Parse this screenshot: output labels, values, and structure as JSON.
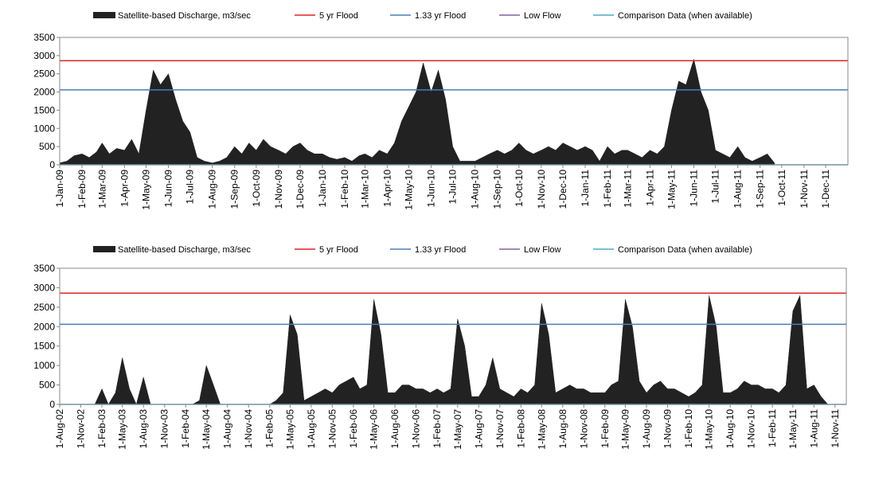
{
  "chart_data": [
    {
      "type": "area",
      "xlim": [
        "2009-01-01",
        "2012-01-01"
      ],
      "ylim": [
        0,
        3500
      ],
      "yticks": [
        0,
        500,
        1000,
        1500,
        2000,
        2500,
        3000,
        3500
      ],
      "xticks": [
        {
          "value": "2009-01-01",
          "label": "1-Jan-09"
        },
        {
          "value": "2009-02-01",
          "label": "1-Feb-09"
        },
        {
          "value": "2009-03-01",
          "label": "1-Mar-09"
        },
        {
          "value": "2009-04-01",
          "label": "1-Apr-09"
        },
        {
          "value": "2009-05-01",
          "label": "1-May-09"
        },
        {
          "value": "2009-06-01",
          "label": "1-Jun-09"
        },
        {
          "value": "2009-07-01",
          "label": "1-Jul-09"
        },
        {
          "value": "2009-08-01",
          "label": "1-Aug-09"
        },
        {
          "value": "2009-09-01",
          "label": "1-Sep-09"
        },
        {
          "value": "2009-10-01",
          "label": "1-Oct-09"
        },
        {
          "value": "2009-11-01",
          "label": "1-Nov-09"
        },
        {
          "value": "2009-12-01",
          "label": "1-Dec-09"
        },
        {
          "value": "2010-01-01",
          "label": "1-Jan-10"
        },
        {
          "value": "2010-02-01",
          "label": "1-Feb-10"
        },
        {
          "value": "2010-03-01",
          "label": "1-Mar-10"
        },
        {
          "value": "2010-04-01",
          "label": "1-Apr-10"
        },
        {
          "value": "2010-05-01",
          "label": "1-May-10"
        },
        {
          "value": "2010-06-01",
          "label": "1-Jun-10"
        },
        {
          "value": "2010-07-01",
          "label": "1-Jul-10"
        },
        {
          "value": "2010-08-01",
          "label": "1-Aug-10"
        },
        {
          "value": "2010-09-01",
          "label": "1-Sep-10"
        },
        {
          "value": "2010-10-01",
          "label": "1-Oct-10"
        },
        {
          "value": "2010-11-01",
          "label": "1-Nov-10"
        },
        {
          "value": "2010-12-01",
          "label": "1-Dec-10"
        },
        {
          "value": "2011-01-01",
          "label": "1-Jan-11"
        },
        {
          "value": "2011-02-01",
          "label": "1-Feb-11"
        },
        {
          "value": "2011-03-01",
          "label": "1-Mar-11"
        },
        {
          "value": "2011-04-01",
          "label": "1-Apr-11"
        },
        {
          "value": "2011-05-01",
          "label": "1-May-11"
        },
        {
          "value": "2011-06-01",
          "label": "1-Jun-11"
        },
        {
          "value": "2011-07-01",
          "label": "1-Jul-11"
        },
        {
          "value": "2011-08-01",
          "label": "1-Aug-11"
        },
        {
          "value": "2011-09-01",
          "label": "1-Sep-11"
        },
        {
          "value": "2011-10-01",
          "label": "1-Oct-11"
        },
        {
          "value": "2011-11-01",
          "label": "1-Nov-11"
        },
        {
          "value": "2011-12-01",
          "label": "1-Dec-11"
        }
      ],
      "x": [
        "2009-01-01",
        "2009-01-11",
        "2009-01-21",
        "2009-02-01",
        "2009-02-11",
        "2009-02-21",
        "2009-03-01",
        "2009-03-11",
        "2009-03-21",
        "2009-04-01",
        "2009-04-11",
        "2009-04-21",
        "2009-05-01",
        "2009-05-11",
        "2009-05-21",
        "2009-06-01",
        "2009-06-11",
        "2009-06-21",
        "2009-07-01",
        "2009-07-11",
        "2009-07-21",
        "2009-08-01",
        "2009-08-11",
        "2009-08-21",
        "2009-09-01",
        "2009-09-11",
        "2009-09-21",
        "2009-10-01",
        "2009-10-11",
        "2009-10-21",
        "2009-11-01",
        "2009-11-11",
        "2009-11-21",
        "2009-12-01",
        "2009-12-11",
        "2009-12-21",
        "2010-01-01",
        "2010-01-11",
        "2010-01-21",
        "2010-02-01",
        "2010-02-11",
        "2010-02-21",
        "2010-03-01",
        "2010-03-11",
        "2010-03-21",
        "2010-04-01",
        "2010-04-11",
        "2010-04-21",
        "2010-05-01",
        "2010-05-11",
        "2010-05-21",
        "2010-06-01",
        "2010-06-11",
        "2010-06-21",
        "2010-07-01",
        "2010-07-11",
        "2010-07-21",
        "2010-08-01",
        "2010-08-11",
        "2010-08-21",
        "2010-09-01",
        "2010-09-11",
        "2010-09-21",
        "2010-10-01",
        "2010-10-11",
        "2010-10-21",
        "2010-11-01",
        "2010-11-11",
        "2010-11-21",
        "2010-12-01",
        "2010-12-11",
        "2010-12-21",
        "2011-01-01",
        "2011-01-11",
        "2011-01-21",
        "2011-02-01",
        "2011-02-11",
        "2011-02-21",
        "2011-03-01",
        "2011-03-11",
        "2011-03-21",
        "2011-04-01",
        "2011-04-11",
        "2011-04-21",
        "2011-05-01",
        "2011-05-11",
        "2011-05-21",
        "2011-06-01",
        "2011-06-11",
        "2011-06-21",
        "2011-07-01",
        "2011-07-11",
        "2011-07-21",
        "2011-08-01",
        "2011-08-11",
        "2011-08-21",
        "2011-09-01",
        "2011-09-11",
        "2011-09-21"
      ],
      "series": [
        {
          "name": "Satellite-based Discharge, m3/sec",
          "color": "#222222",
          "values": [
            50,
            100,
            250,
            300,
            200,
            350,
            600,
            300,
            450,
            400,
            700,
            300,
            1500,
            2600,
            2200,
            2500,
            1800,
            1200,
            900,
            200,
            100,
            50,
            100,
            200,
            500,
            300,
            600,
            400,
            700,
            500,
            400,
            300,
            500,
            600,
            400,
            300,
            300,
            200,
            150,
            200,
            100,
            250,
            300,
            200,
            400,
            300,
            600,
            1200,
            1600,
            2000,
            2800,
            2000,
            2600,
            1800,
            500,
            100,
            100,
            100,
            200,
            300,
            400,
            300,
            400,
            600,
            400,
            300,
            400,
            500,
            400,
            600,
            500,
            400,
            500,
            400,
            100,
            500,
            300,
            400,
            400,
            300,
            200,
            400,
            300,
            500,
            1500,
            2300,
            2200,
            2900,
            2000,
            1500,
            400,
            300,
            200,
            500,
            200,
            100,
            200,
            300,
            50
          ]
        }
      ],
      "reference_lines": [
        {
          "name": "5 yr Flood",
          "color": "#e02424",
          "value": 2860
        },
        {
          "name": "1.33 yr Flood",
          "color": "#4a7ebb",
          "value": 2060
        },
        {
          "name": "Low Flow",
          "color": "#8064a2"
        },
        {
          "name": "Comparison Data (when available)",
          "color": "#4bacc6"
        }
      ]
    },
    {
      "type": "area",
      "xlim": [
        "2002-08-01",
        "2011-12-20"
      ],
      "ylim": [
        0,
        3500
      ],
      "yticks": [
        0,
        500,
        1000,
        1500,
        2000,
        2500,
        3000,
        3500
      ],
      "xticks": [
        {
          "value": "2002-08-01",
          "label": "1-Aug-02"
        },
        {
          "value": "2002-11-01",
          "label": "1-Nov-02"
        },
        {
          "value": "2003-02-01",
          "label": "1-Feb-03"
        },
        {
          "value": "2003-05-01",
          "label": "1-May-03"
        },
        {
          "value": "2003-08-01",
          "label": "1-Aug-03"
        },
        {
          "value": "2003-11-01",
          "label": "1-Nov-03"
        },
        {
          "value": "2004-02-01",
          "label": "1-Feb-04"
        },
        {
          "value": "2004-05-01",
          "label": "1-May-04"
        },
        {
          "value": "2004-08-01",
          "label": "1-Aug-04"
        },
        {
          "value": "2004-11-01",
          "label": "1-Nov-04"
        },
        {
          "value": "2005-02-01",
          "label": "1-Feb-05"
        },
        {
          "value": "2005-05-01",
          "label": "1-May-05"
        },
        {
          "value": "2005-08-01",
          "label": "1-Aug-05"
        },
        {
          "value": "2005-11-01",
          "label": "1-Nov-05"
        },
        {
          "value": "2006-02-01",
          "label": "1-Feb-06"
        },
        {
          "value": "2006-05-01",
          "label": "1-May-06"
        },
        {
          "value": "2006-08-01",
          "label": "1-Aug-06"
        },
        {
          "value": "2006-11-01",
          "label": "1-Nov-06"
        },
        {
          "value": "2007-02-01",
          "label": "1-Feb-07"
        },
        {
          "value": "2007-05-01",
          "label": "1-May-07"
        },
        {
          "value": "2007-08-01",
          "label": "1-Aug-07"
        },
        {
          "value": "2007-11-01",
          "label": "1-Nov-07"
        },
        {
          "value": "2008-02-01",
          "label": "1-Feb-08"
        },
        {
          "value": "2008-05-01",
          "label": "1-May-08"
        },
        {
          "value": "2008-08-01",
          "label": "1-Aug-08"
        },
        {
          "value": "2008-11-01",
          "label": "1-Nov-08"
        },
        {
          "value": "2009-02-01",
          "label": "1-Feb-09"
        },
        {
          "value": "2009-05-01",
          "label": "1-May-09"
        },
        {
          "value": "2009-08-01",
          "label": "1-Aug-09"
        },
        {
          "value": "2009-11-01",
          "label": "1-Nov-09"
        },
        {
          "value": "2010-02-01",
          "label": "1-Feb-10"
        },
        {
          "value": "2010-05-01",
          "label": "1-May-10"
        },
        {
          "value": "2010-08-01",
          "label": "1-Aug-10"
        },
        {
          "value": "2010-11-01",
          "label": "1-Nov-10"
        },
        {
          "value": "2011-02-01",
          "label": "1-Feb-11"
        },
        {
          "value": "2011-05-01",
          "label": "1-May-11"
        },
        {
          "value": "2011-08-01",
          "label": "1-Aug-11"
        },
        {
          "value": "2011-11-01",
          "label": "1-Nov-11"
        }
      ],
      "x": [
        "2002-08-01",
        "2002-09-01",
        "2002-10-01",
        "2002-11-01",
        "2002-12-01",
        "2003-01-01",
        "2003-02-01",
        "2003-03-01",
        "2003-04-01",
        "2003-05-01",
        "2003-06-01",
        "2003-07-01",
        "2003-08-01",
        "2003-09-01",
        "2003-10-01",
        "2003-11-01",
        "2003-12-01",
        "2004-01-01",
        "2004-02-01",
        "2004-03-01",
        "2004-04-01",
        "2004-05-01",
        "2004-06-01",
        "2004-07-01",
        "2004-08-01",
        "2004-09-01",
        "2004-10-01",
        "2004-11-01",
        "2004-12-01",
        "2005-01-01",
        "2005-02-01",
        "2005-03-01",
        "2005-04-01",
        "2005-05-01",
        "2005-06-01",
        "2005-07-01",
        "2005-08-01",
        "2005-09-01",
        "2005-10-01",
        "2005-11-01",
        "2005-12-01",
        "2006-01-01",
        "2006-02-01",
        "2006-03-01",
        "2006-04-01",
        "2006-05-01",
        "2006-06-01",
        "2006-07-01",
        "2006-08-01",
        "2006-09-01",
        "2006-10-01",
        "2006-11-01",
        "2006-12-01",
        "2007-01-01",
        "2007-02-01",
        "2007-03-01",
        "2007-04-01",
        "2007-05-01",
        "2007-06-01",
        "2007-07-01",
        "2007-08-01",
        "2007-09-01",
        "2007-10-01",
        "2007-11-01",
        "2007-12-01",
        "2008-01-01",
        "2008-02-01",
        "2008-03-01",
        "2008-04-01",
        "2008-05-01",
        "2008-06-01",
        "2008-07-01",
        "2008-08-01",
        "2008-09-01",
        "2008-10-01",
        "2008-11-01",
        "2008-12-01",
        "2009-01-01",
        "2009-02-01",
        "2009-03-01",
        "2009-04-01",
        "2009-05-01",
        "2009-06-01",
        "2009-07-01",
        "2009-08-01",
        "2009-09-01",
        "2009-10-01",
        "2009-11-01",
        "2009-12-01",
        "2010-01-01",
        "2010-02-01",
        "2010-03-01",
        "2010-04-01",
        "2010-05-01",
        "2010-06-01",
        "2010-07-01",
        "2010-08-01",
        "2010-09-01",
        "2010-10-01",
        "2010-11-01",
        "2010-12-01",
        "2011-01-01",
        "2011-02-01",
        "2011-03-01",
        "2011-04-01",
        "2011-05-01",
        "2011-06-01",
        "2011-07-01",
        "2011-08-01",
        "2011-09-01",
        "2011-10-01",
        "2011-11-01"
      ],
      "series": [
        {
          "name": "Satellite-based Discharge, m3/sec",
          "color": "#222222",
          "values": [
            0,
            0,
            0,
            0,
            0,
            0,
            400,
            0,
            300,
            1200,
            400,
            0,
            700,
            0,
            0,
            0,
            0,
            0,
            0,
            0,
            100,
            1000,
            500,
            0,
            0,
            0,
            0,
            0,
            0,
            0,
            0,
            100,
            300,
            2300,
            1800,
            100,
            200,
            300,
            400,
            300,
            500,
            600,
            700,
            400,
            500,
            2700,
            1800,
            300,
            300,
            500,
            500,
            400,
            400,
            300,
            400,
            300,
            400,
            2200,
            1500,
            200,
            200,
            500,
            1200,
            400,
            300,
            200,
            400,
            300,
            500,
            2600,
            1800,
            300,
            400,
            500,
            400,
            400,
            300,
            300,
            300,
            500,
            600,
            2700,
            2000,
            600,
            300,
            500,
            600,
            400,
            400,
            300,
            200,
            300,
            500,
            2800,
            2000,
            300,
            300,
            400,
            600,
            500,
            500,
            400,
            400,
            300,
            500,
            2400,
            2800,
            400,
            500,
            200,
            0,
            0
          ]
        }
      ],
      "reference_lines": [
        {
          "name": "5 yr Flood",
          "color": "#e02424",
          "value": 2860
        },
        {
          "name": "1.33 yr Flood",
          "color": "#4a7ebb",
          "value": 2060
        },
        {
          "name": "Low Flow",
          "color": "#8064a2"
        },
        {
          "name": "Comparison Data (when available)",
          "color": "#4bacc6"
        }
      ]
    }
  ]
}
